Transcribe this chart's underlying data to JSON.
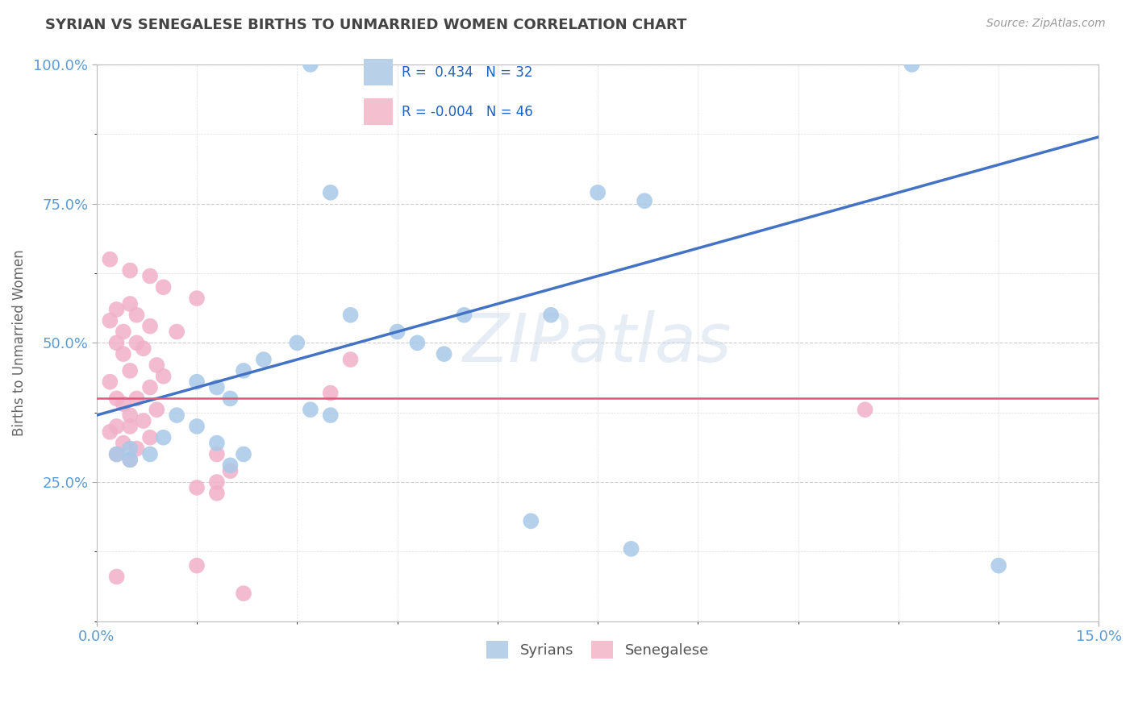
{
  "title": "SYRIAN VS SENEGALESE BIRTHS TO UNMARRIED WOMEN CORRELATION CHART",
  "source": "Source: ZipAtlas.com",
  "ylabel": "Births to Unmarried Women",
  "xlim": [
    0.0,
    15.0
  ],
  "ylim": [
    0.0,
    100.0
  ],
  "watermark": "ZIPatlas",
  "syrians_color": "#a8c8e8",
  "senegalese_color": "#f0b0c8",
  "title_color": "#444444",
  "axis_label_color": "#5b9bd5",
  "background_color": "#ffffff",
  "grid_color": "#c8c8c8",
  "trend_blue_color": "#4472c4",
  "trend_pink_color": "#e05878",
  "legend_blue_fill": "#b8d0e8",
  "legend_pink_fill": "#f4c0d0",
  "R_blue": 0.434,
  "N_blue": 32,
  "R_pink": -0.004,
  "N_pink": 46,
  "syrians_xy": [
    [
      3.2,
      100.0
    ],
    [
      12.2,
      100.0
    ],
    [
      3.5,
      77.0
    ],
    [
      7.5,
      77.0
    ],
    [
      8.2,
      75.5
    ],
    [
      3.8,
      55.0
    ],
    [
      5.5,
      55.0
    ],
    [
      6.8,
      55.0
    ],
    [
      4.5,
      52.0
    ],
    [
      4.8,
      50.0
    ],
    [
      5.2,
      48.0
    ],
    [
      3.0,
      50.0
    ],
    [
      2.5,
      47.0
    ],
    [
      2.2,
      45.0
    ],
    [
      1.5,
      43.0
    ],
    [
      1.8,
      42.0
    ],
    [
      2.0,
      40.0
    ],
    [
      3.2,
      38.0
    ],
    [
      3.5,
      37.0
    ],
    [
      1.2,
      37.0
    ],
    [
      1.5,
      35.0
    ],
    [
      1.0,
      33.0
    ],
    [
      1.8,
      32.0
    ],
    [
      2.2,
      30.0
    ],
    [
      0.5,
      31.0
    ],
    [
      0.8,
      30.0
    ],
    [
      0.3,
      30.0
    ],
    [
      0.5,
      29.0
    ],
    [
      2.0,
      28.0
    ],
    [
      6.5,
      18.0
    ],
    [
      8.0,
      13.0
    ],
    [
      13.5,
      10.0
    ]
  ],
  "senegalese_xy": [
    [
      0.2,
      65.0
    ],
    [
      0.5,
      63.0
    ],
    [
      0.8,
      62.0
    ],
    [
      1.0,
      60.0
    ],
    [
      1.5,
      58.0
    ],
    [
      0.5,
      57.0
    ],
    [
      0.3,
      56.0
    ],
    [
      0.6,
      55.0
    ],
    [
      0.2,
      54.0
    ],
    [
      0.8,
      53.0
    ],
    [
      0.4,
      52.0
    ],
    [
      1.2,
      52.0
    ],
    [
      0.6,
      50.0
    ],
    [
      0.3,
      50.0
    ],
    [
      0.7,
      49.0
    ],
    [
      0.4,
      48.0
    ],
    [
      3.8,
      47.0
    ],
    [
      0.9,
      46.0
    ],
    [
      0.5,
      45.0
    ],
    [
      1.0,
      44.0
    ],
    [
      0.2,
      43.0
    ],
    [
      0.8,
      42.0
    ],
    [
      3.5,
      41.0
    ],
    [
      0.3,
      40.0
    ],
    [
      0.6,
      40.0
    ],
    [
      0.4,
      39.0
    ],
    [
      0.9,
      38.0
    ],
    [
      11.5,
      38.0
    ],
    [
      0.5,
      37.0
    ],
    [
      0.7,
      36.0
    ],
    [
      0.3,
      35.0
    ],
    [
      0.5,
      35.0
    ],
    [
      0.2,
      34.0
    ],
    [
      0.8,
      33.0
    ],
    [
      0.4,
      32.0
    ],
    [
      0.6,
      31.0
    ],
    [
      0.3,
      30.0
    ],
    [
      1.8,
      30.0
    ],
    [
      0.5,
      29.0
    ],
    [
      2.0,
      27.0
    ],
    [
      1.8,
      25.0
    ],
    [
      1.5,
      24.0
    ],
    [
      1.8,
      23.0
    ],
    [
      1.5,
      10.0
    ],
    [
      0.3,
      8.0
    ],
    [
      2.2,
      5.0
    ]
  ],
  "blue_trend_y0": 37.0,
  "blue_trend_y1": 87.0,
  "pink_trend_y": 40.0
}
